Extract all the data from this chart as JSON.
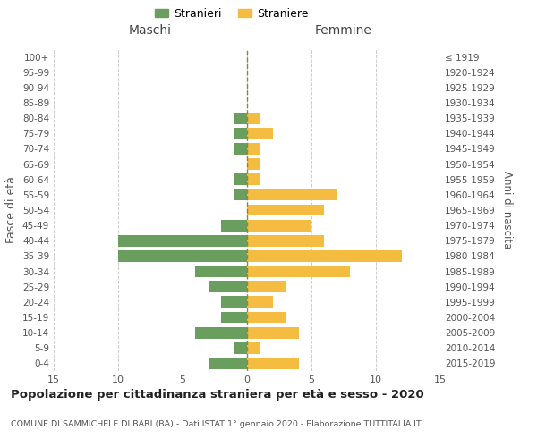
{
  "age_groups": [
    "0-4",
    "5-9",
    "10-14",
    "15-19",
    "20-24",
    "25-29",
    "30-34",
    "35-39",
    "40-44",
    "45-49",
    "50-54",
    "55-59",
    "60-64",
    "65-69",
    "70-74",
    "75-79",
    "80-84",
    "85-89",
    "90-94",
    "95-99",
    "100+"
  ],
  "birth_years": [
    "2015-2019",
    "2010-2014",
    "2005-2009",
    "2000-2004",
    "1995-1999",
    "1990-1994",
    "1985-1989",
    "1980-1984",
    "1975-1979",
    "1970-1974",
    "1965-1969",
    "1960-1964",
    "1955-1959",
    "1950-1954",
    "1945-1949",
    "1940-1944",
    "1935-1939",
    "1930-1934",
    "1925-1929",
    "1920-1924",
    "≤ 1919"
  ],
  "males": [
    3,
    1,
    4,
    2,
    2,
    3,
    4,
    10,
    10,
    2,
    0,
    1,
    1,
    0,
    1,
    1,
    1,
    0,
    0,
    0,
    0
  ],
  "females": [
    4,
    1,
    4,
    3,
    2,
    3,
    8,
    12,
    6,
    5,
    6,
    7,
    1,
    1,
    1,
    2,
    1,
    0,
    0,
    0,
    0
  ],
  "male_color": "#6a9e5e",
  "female_color": "#f5bc42",
  "title": "Popolazione per cittadinanza straniera per età e sesso - 2020",
  "subtitle": "COMUNE DI SAMMICHELE DI BARI (BA) - Dati ISTAT 1° gennaio 2020 - Elaborazione TUTTITALIA.IT",
  "xlabel_left": "Maschi",
  "xlabel_right": "Femmine",
  "ylabel_left": "Fasce di età",
  "ylabel_right": "Anni di nascita",
  "legend_male": "Stranieri",
  "legend_female": "Straniere",
  "xlim": 15,
  "background_color": "#ffffff",
  "grid_color": "#cccccc",
  "dashed_line_color": "#888840"
}
